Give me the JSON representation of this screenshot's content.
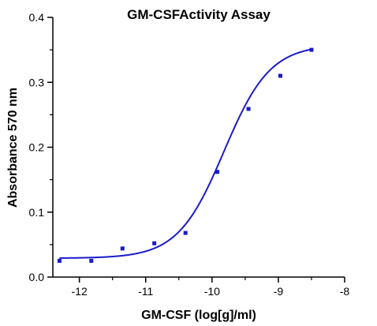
{
  "chart_data": {
    "type": "scatter",
    "title": "GM-CSFActivity Assay",
    "xlabel": "GM-CSF (log[g]/ml)",
    "ylabel": "Absorbance 570 nm",
    "xlim": [
      -12.4,
      -8
    ],
    "ylim": [
      0,
      0.4
    ],
    "xticks": [
      -12,
      -11,
      -10,
      -9,
      -8
    ],
    "xtick_labels": [
      "-12",
      "-11",
      "-10",
      "-9",
      "-8"
    ],
    "yticks": [
      0,
      0.1,
      0.2,
      0.3,
      0.4
    ],
    "ytick_labels": [
      "0.0",
      "0.1",
      "0.2",
      "0.3",
      "0.4"
    ],
    "grid": false,
    "series": [
      {
        "points": [
          {
            "x": -12.3,
            "y": 0.025
          },
          {
            "x": -11.82,
            "y": 0.025
          },
          {
            "x": -11.35,
            "y": 0.044
          },
          {
            "x": -10.87,
            "y": 0.052
          },
          {
            "x": -10.4,
            "y": 0.068
          },
          {
            "x": -9.92,
            "y": 0.162
          },
          {
            "x": -9.45,
            "y": 0.259
          },
          {
            "x": -8.97,
            "y": 0.31
          },
          {
            "x": -8.5,
            "y": 0.35
          }
        ],
        "fit": {
          "model": "four-parameter logistic",
          "bottom": 0.029,
          "top": 0.358,
          "ec50_log": -9.82,
          "hill_slope": 1.25,
          "x_range": [
            -12.3,
            -8.5
          ]
        },
        "color": "#1a1acc"
      }
    ]
  }
}
